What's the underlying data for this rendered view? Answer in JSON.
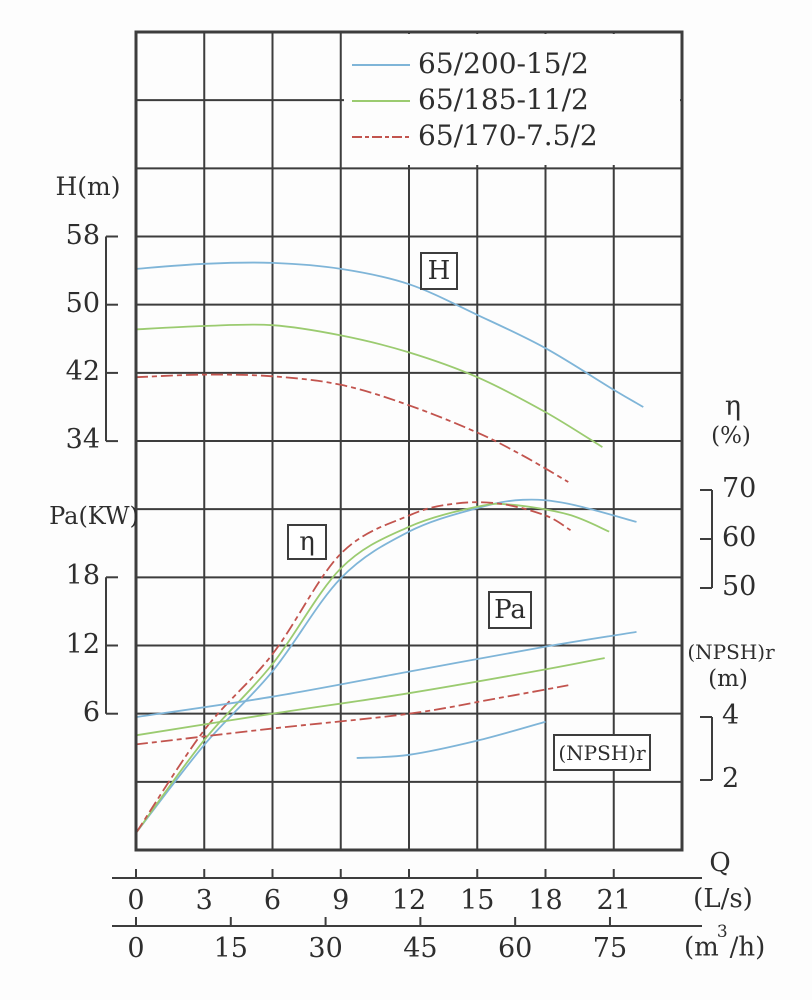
{
  "colors": {
    "blue": "#7fb5d8",
    "green": "#9bcb70",
    "red": "#c2544e",
    "axis": "#3d3d3d",
    "text": "#2e2e2e"
  },
  "chart_data": {
    "type": "line",
    "title": "",
    "axis_titles": {
      "head": "H(m)",
      "power": "Pa(KW)",
      "eta": "η",
      "eta_unit": "(%)",
      "npsh": "(NPSH)r",
      "npsh_unit": "(m)",
      "flow": "Q",
      "flow_unit_ls": "(L/s)",
      "flow_m3h_pre": "(m",
      "flow_m3h_sup": "3",
      "flow_m3h_post": "/h)"
    },
    "curve_boxes": {
      "H": "H",
      "eta": "η",
      "Pa": "Pa",
      "npsh": "(NPSH)r"
    },
    "x_axis": {
      "label": "Q",
      "units": [
        "(L/s)",
        "(m³/h)"
      ],
      "ticks_ls": [
        0,
        3,
        6,
        9,
        12,
        15,
        18,
        21
      ],
      "ticks_m3h": [
        0,
        15,
        30,
        45,
        60,
        75
      ],
      "range_ls": [
        0,
        24
      ],
      "grid": true
    },
    "y_axes": [
      {
        "id": "H",
        "label": "H(m)",
        "ticks": [
          58,
          50,
          42,
          34
        ],
        "range": [
          34,
          58
        ]
      },
      {
        "id": "Pa",
        "label": "Pa(KW)",
        "ticks": [
          18,
          12,
          6
        ],
        "range": [
          6,
          18
        ]
      },
      {
        "id": "eta",
        "label": "η(%)",
        "ticks": [
          70,
          60,
          50
        ],
        "range": [
          50,
          70
        ]
      },
      {
        "id": "npsh",
        "label": "(NPSH)r(m)",
        "ticks": [
          4,
          2
        ],
        "range": [
          2,
          4
        ]
      }
    ],
    "legend": {
      "items": [
        {
          "label": "65/200-15/2",
          "color": "blue",
          "dash": false
        },
        {
          "label": "65/185-11/2",
          "color": "green",
          "dash": false
        },
        {
          "label": "65/170-7.5/2",
          "color": "red",
          "dash": true
        }
      ]
    },
    "series": [
      {
        "pump": "65/200-15/2",
        "quantity": "H",
        "axis": "H",
        "color": "blue",
        "dash": false,
        "points": [
          [
            0,
            54.2
          ],
          [
            3,
            54.8
          ],
          [
            6,
            54.9
          ],
          [
            9,
            54.2
          ],
          [
            12,
            52.4
          ],
          [
            15,
            48.8
          ],
          [
            18,
            44.9
          ],
          [
            21,
            40.0
          ],
          [
            22.3,
            38.0
          ]
        ]
      },
      {
        "pump": "65/185-11/2",
        "quantity": "H",
        "axis": "H",
        "color": "green",
        "dash": false,
        "points": [
          [
            0,
            47.1
          ],
          [
            3,
            47.5
          ],
          [
            6,
            47.6
          ],
          [
            9,
            46.4
          ],
          [
            12,
            44.4
          ],
          [
            15,
            41.5
          ],
          [
            18,
            37.4
          ],
          [
            20.5,
            33.3
          ]
        ]
      },
      {
        "pump": "65/170-7.5/2",
        "quantity": "H",
        "axis": "H",
        "color": "red",
        "dash": true,
        "points": [
          [
            0,
            41.5
          ],
          [
            3,
            41.8
          ],
          [
            6,
            41.6
          ],
          [
            9,
            40.6
          ],
          [
            12,
            38.2
          ],
          [
            15,
            35.0
          ],
          [
            17,
            32.3
          ],
          [
            19,
            29.2
          ]
        ]
      },
      {
        "pump": "65/200-15/2",
        "quantity": "η",
        "axis": "eta",
        "color": "blue",
        "dash": false,
        "points": [
          [
            0,
            0
          ],
          [
            3,
            18
          ],
          [
            6,
            33
          ],
          [
            9,
            52
          ],
          [
            12,
            61.5
          ],
          [
            15,
            66.3
          ],
          [
            17,
            68
          ],
          [
            19,
            67.2
          ],
          [
            22,
            63.5
          ]
        ]
      },
      {
        "pump": "65/185-11/2",
        "quantity": "η",
        "axis": "eta",
        "color": "green",
        "dash": false,
        "points": [
          [
            0,
            0
          ],
          [
            3,
            19
          ],
          [
            6,
            34.5
          ],
          [
            9,
            54
          ],
          [
            12,
            62.5
          ],
          [
            15,
            66.6
          ],
          [
            16.5,
            67
          ],
          [
            19,
            65
          ],
          [
            20.8,
            61.5
          ]
        ]
      },
      {
        "pump": "65/170-7.5/2",
        "quantity": "η",
        "axis": "eta",
        "color": "red",
        "dash": true,
        "points": [
          [
            0,
            0
          ],
          [
            3,
            21
          ],
          [
            6,
            36.5
          ],
          [
            9,
            57
          ],
          [
            12,
            64.8
          ],
          [
            14,
            67.2
          ],
          [
            16,
            67.2
          ],
          [
            18,
            64.8
          ],
          [
            19.1,
            61.8
          ]
        ]
      },
      {
        "pump": "65/200-15/2",
        "quantity": "Pa",
        "axis": "Pa",
        "color": "blue",
        "dash": false,
        "points": [
          [
            0,
            5.7
          ],
          [
            6,
            7.5
          ],
          [
            12,
            9.7
          ],
          [
            18,
            11.9
          ],
          [
            22,
            13.2
          ]
        ]
      },
      {
        "pump": "65/185-11/2",
        "quantity": "Pa",
        "axis": "Pa",
        "color": "green",
        "dash": false,
        "points": [
          [
            0,
            4.1
          ],
          [
            6,
            6.0
          ],
          [
            12,
            7.8
          ],
          [
            18,
            9.9
          ],
          [
            20.6,
            10.9
          ]
        ]
      },
      {
        "pump": "65/170-7.5/2",
        "quantity": "Pa",
        "axis": "Pa",
        "color": "red",
        "dash": true,
        "points": [
          [
            0,
            3.3
          ],
          [
            6,
            4.7
          ],
          [
            12,
            6.0
          ],
          [
            16,
            7.4
          ],
          [
            19,
            8.5
          ]
        ]
      },
      {
        "pump": "",
        "quantity": "(NPSH)r",
        "axis": "npsh",
        "color": "blue",
        "dash": false,
        "points": [
          [
            9.7,
            2.7
          ],
          [
            12,
            2.8
          ],
          [
            15,
            3.25
          ],
          [
            18,
            3.85
          ]
        ]
      }
    ]
  }
}
